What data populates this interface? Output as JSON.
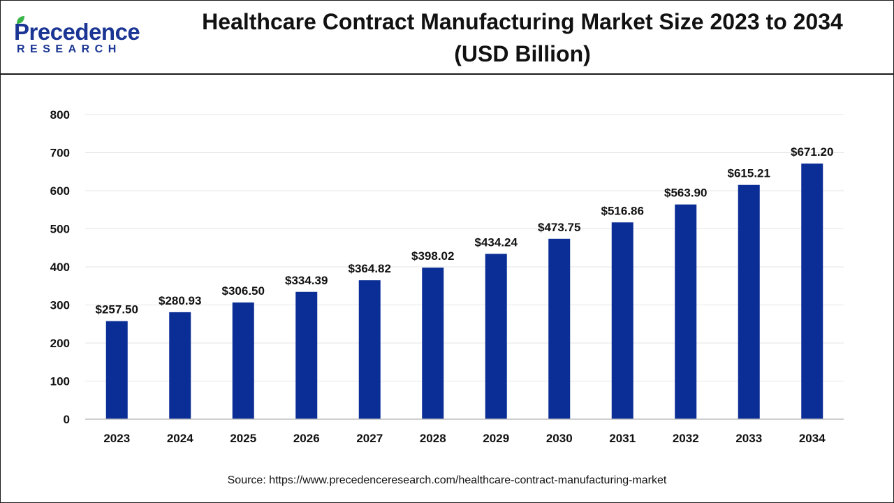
{
  "header": {
    "logo_main": "Precedence",
    "logo_sub": "RESEARCH",
    "title": "Healthcare Contract Manufacturing Market Size 2023 to 2034 (USD Billion)"
  },
  "source": "Source: https://www.precedenceresearch.com/healthcare-contract-manufacturing-market",
  "colors": {
    "bar": "#0a2d96",
    "brand": "#1a3594",
    "leaf": "#3ab54a",
    "grid": "#e6e6e6"
  },
  "chart_data": {
    "type": "bar",
    "title": "Healthcare Contract Manufacturing Market Size 2023 to 2034 (USD Billion)",
    "categories": [
      "2023",
      "2024",
      "2025",
      "2026",
      "2027",
      "2028",
      "2029",
      "2030",
      "2031",
      "2032",
      "2033",
      "2034"
    ],
    "values": [
      257.5,
      280.93,
      306.5,
      334.39,
      364.82,
      398.02,
      434.24,
      473.75,
      516.86,
      563.9,
      615.21,
      671.2
    ],
    "data_labels": [
      "$257.50",
      "$280.93",
      "$306.50",
      "$334.39",
      "$364.82",
      "$398.02",
      "$434.24",
      "$473.75",
      "$516.86",
      "$563.90",
      "$615.21",
      "$671.20"
    ],
    "yticks": [
      0,
      100,
      200,
      300,
      400,
      500,
      600,
      700,
      800
    ],
    "ylim": [
      0,
      800
    ],
    "grid": true,
    "legend": "none"
  }
}
